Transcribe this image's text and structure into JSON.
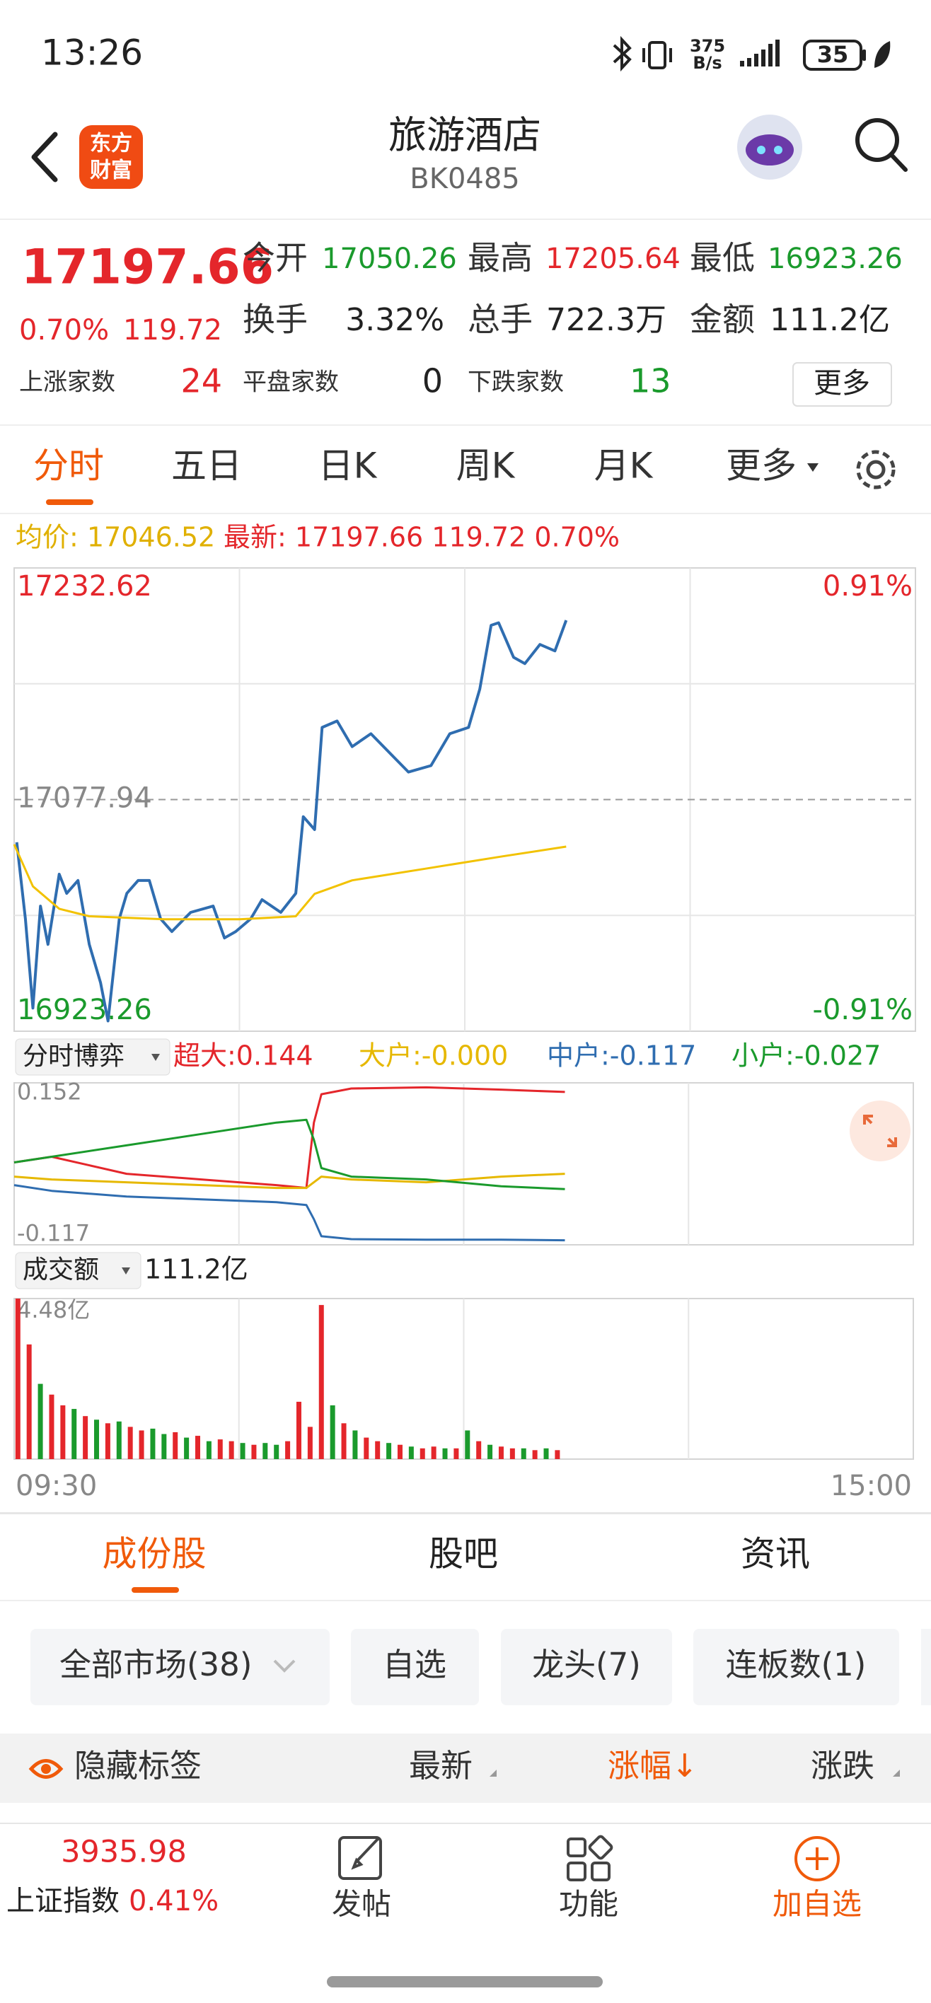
{
  "status_bar": {
    "time": "13:26",
    "net_speed": [
      "375",
      "B/s"
    ],
    "battery": "35"
  },
  "header": {
    "logo": [
      "东方",
      "财富"
    ],
    "title": "旅游酒店",
    "code": "BK0485"
  },
  "quote": {
    "price": "17197.66",
    "change_pct": "0.70%",
    "change": "119.72",
    "stats": [
      [
        {
          "label": "今开",
          "value": "17050.26"
        },
        {
          "label": "最高",
          "value": "17205.64"
        },
        {
          "label": "最低",
          "value": "16923.26"
        }
      ],
      [
        {
          "label": "换手",
          "value": "3.32%"
        },
        {
          "label": "总手",
          "value": "722.3万"
        },
        {
          "label": "金额",
          "value": "111.2亿"
        }
      ],
      [
        {
          "label": "上涨家数",
          "value": "24"
        },
        {
          "label": "平盘家数",
          "value": "0"
        },
        {
          "label": "下跌家数",
          "value": "13"
        }
      ]
    ],
    "more": "更多"
  },
  "period_tabs": [
    "分时",
    "五日",
    "日K",
    "周K",
    "月K",
    "更多"
  ],
  "info_line": {
    "average": "均价: 17046.52",
    "latest": "最新: 17197.66 119.72 0.70%"
  },
  "chart_data": [
    {
      "type": "line",
      "xlim": [
        0,
        240
      ],
      "xgrid": [
        60,
        120,
        180
      ],
      "ylim": [
        16923.26,
        17232.62
      ],
      "yticks": [
        17232.62,
        17077.94,
        16923.26
      ],
      "ygrid": [
        17155.28,
        17000.6
      ],
      "y2lim": [
        -0.91,
        0.91
      ],
      "y2ticks": [
        {
          "value": 0.91,
          "label": "0.91%"
        },
        {
          "value": -0.91,
          "label": "-0.91%"
        }
      ],
      "series": [
        {
          "color": "#2f6db0",
          "x": [
            0.7,
            3,
            5,
            7,
            9,
            12,
            14,
            17,
            20,
            23,
            25,
            28,
            30,
            33,
            36,
            39,
            42,
            47,
            53,
            56,
            59,
            63,
            66,
            71,
            75,
            77,
            80,
            82,
            86,
            90,
            95,
            100,
            105,
            111,
            116,
            121,
            124,
            127,
            129,
            133,
            136,
            140,
            144,
            147
          ],
          "values": [
            17049.4,
            16998.3,
            16938.7,
            17006.8,
            16981.2,
            17028.1,
            17015.3,
            17023.9,
            16981.2,
            16955.7,
            16930.1,
            16998.3,
            17015.3,
            17023.9,
            17023.9,
            16998.3,
            16989.8,
            17002.6,
            17006.8,
            16985.5,
            16989.8,
            16998.3,
            17011.1,
            17002.6,
            17015.3,
            17066.5,
            17057.9,
            17126.1,
            17130.4,
            17113.3,
            17121.9,
            17109.1,
            17096.3,
            17100.6,
            17121.9,
            17126.1,
            17151.7,
            17194.3,
            17196,
            17172.9,
            17168.7,
            17181.5,
            17177.2,
            17197.66
          ]
        },
        {
          "color": "#f2c200",
          "x": [
            0,
            5,
            12,
            20,
            40,
            60,
            75,
            80,
            90,
            110,
            130,
            147
          ],
          "values": [
            17048,
            17020,
            17005,
            17000,
            16998,
            16998,
            17000,
            17015,
            17024,
            17032,
            17040,
            17046.52
          ]
        }
      ]
    },
    {
      "type": "line",
      "xlim": [
        0,
        240
      ],
      "xgrid": [
        60,
        120,
        180
      ],
      "ylim": [
        -0.125,
        0.16
      ],
      "yticks": [
        0.152,
        -0.117
      ],
      "x": [
        0,
        10,
        30,
        50,
        70,
        78,
        80,
        82,
        90,
        110,
        130,
        147
      ],
      "series": [
        {
          "name": "超大:0.144",
          "color": "#e4262b",
          "values": [
            0.02,
            0.03,
            0,
            -0.01,
            -0.02,
            -0.025,
            0.09,
            0.14,
            0.15,
            0.152,
            0.148,
            0.144
          ]
        },
        {
          "name": "大户:-0.000",
          "color": "#e6b800",
          "values": [
            -0.005,
            -0.01,
            -0.015,
            -0.02,
            -0.025,
            -0.025,
            -0.015,
            -0.005,
            -0.01,
            -0.015,
            -0.005,
            0
          ]
        },
        {
          "name": "中户:-0.117",
          "color": "#2f6db0",
          "values": [
            -0.02,
            -0.03,
            -0.04,
            -0.045,
            -0.05,
            -0.055,
            -0.08,
            -0.11,
            -0.115,
            -0.116,
            -0.116,
            -0.117
          ]
        },
        {
          "name": "小户:-0.027",
          "color": "#1a9a2c",
          "values": [
            0.02,
            0.03,
            0.05,
            0.07,
            0.09,
            0.095,
            0.06,
            0.01,
            -0.005,
            -0.01,
            -0.022,
            -0.027
          ]
        }
      ]
    },
    {
      "type": "bar",
      "xlim": [
        0,
        240
      ],
      "xgrid": [
        60,
        120,
        180
      ],
      "ylim": [
        0,
        4.48
      ],
      "yticks": [
        {
          "value": 4.48,
          "label": "4.48亿"
        }
      ],
      "xticks": [
        {
          "value": 0,
          "label": "09:30"
        },
        {
          "value": 240,
          "label": "15:00"
        }
      ],
      "x": [
        1,
        4,
        7,
        10,
        13,
        16,
        19,
        22,
        25,
        28,
        31,
        34,
        37,
        40,
        43,
        46,
        49,
        52,
        55,
        58,
        61,
        64,
        67,
        70,
        73,
        76,
        79,
        82,
        85,
        88,
        91,
        94,
        97,
        100,
        103,
        106,
        109,
        112,
        115,
        118,
        121,
        124,
        127,
        130,
        133,
        136,
        139,
        142,
        145
      ],
      "values": [
        4.48,
        3.2,
        2.1,
        1.8,
        1.5,
        1.4,
        1.2,
        1.1,
        1.0,
        1.05,
        0.9,
        0.8,
        0.85,
        0.7,
        0.75,
        0.6,
        0.65,
        0.5,
        0.55,
        0.5,
        0.45,
        0.4,
        0.45,
        0.4,
        0.5,
        1.6,
        0.9,
        4.3,
        1.5,
        1.0,
        0.8,
        0.6,
        0.5,
        0.45,
        0.4,
        0.35,
        0.3,
        0.35,
        0.3,
        0.3,
        0.8,
        0.5,
        0.4,
        0.35,
        0.3,
        0.3,
        0.25,
        0.3,
        0.25
      ],
      "colors": [
        "#e4262b",
        "#e4262b",
        "#1a9a2c",
        "#e4262b",
        "#e4262b",
        "#1a9a2c",
        "#e4262b",
        "#1a9a2c",
        "#e4262b",
        "#1a9a2c",
        "#e4262b",
        "#e4262b",
        "#1a9a2c",
        "#1a9a2c",
        "#e4262b",
        "#1a9a2c",
        "#e4262b",
        "#1a9a2c",
        "#e4262b",
        "#e4262b",
        "#1a9a2c",
        "#e4262b",
        "#1a9a2c",
        "#1a9a2c",
        "#e4262b",
        "#e4262b",
        "#e4262b",
        "#e4262b",
        "#1a9a2c",
        "#e4262b",
        "#1a9a2c",
        "#e4262b",
        "#e4262b",
        "#1a9a2c",
        "#e4262b",
        "#1a9a2c",
        "#e4262b",
        "#e4262b",
        "#1a9a2c",
        "#e4262b",
        "#1a9a2c",
        "#e4262b",
        "#1a9a2c",
        "#e4262b",
        "#e4262b",
        "#1a9a2c",
        "#e4262b",
        "#1a9a2c",
        "#e4262b"
      ]
    }
  ],
  "flow_selector": "分时博弈",
  "volume_selector": "成交额",
  "volume_total": "111.2亿",
  "section_tabs": [
    "成份股",
    "股吧",
    "资讯"
  ],
  "filters": [
    "全部市场(38)",
    "自选",
    "龙头(7)",
    "连板数(1)"
  ],
  "table_header": [
    "隐藏标签",
    "最新",
    "涨幅↓",
    "涨跌"
  ],
  "bottom_bar": {
    "index_value": "3935.98",
    "index_name": "上证指数",
    "index_change": "0.41%",
    "actions": [
      "发帖",
      "功能",
      "加自选"
    ]
  }
}
